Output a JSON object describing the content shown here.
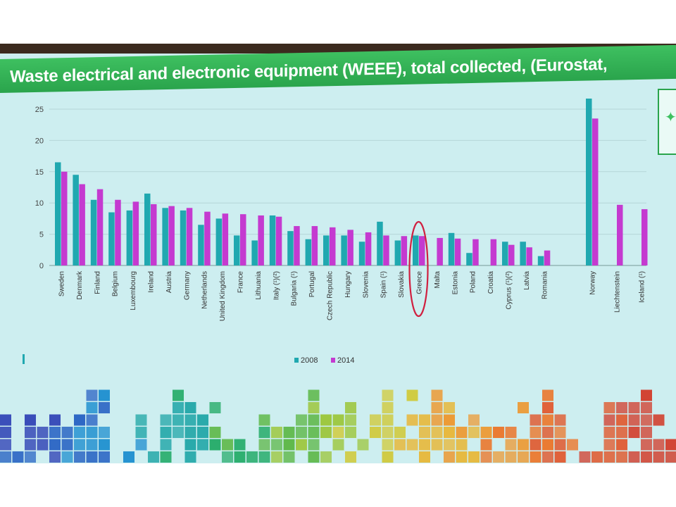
{
  "title": "Waste electrical and electronic equipment (WEEE), total collected, (Eurostat,",
  "colors": {
    "series_2008": "#20a8b0",
    "series_2014": "#c43ad0",
    "title_bar": "#2aa44c",
    "highlight": "#d02040"
  },
  "chart_data": {
    "type": "bar",
    "categories": [
      "Sweden",
      "Denmark",
      "Finland",
      "Belgium",
      "Luxembourg",
      "Ireland",
      "Austria",
      "Germany",
      "Netherlands",
      "United Kingdom",
      "France",
      "Lithuania",
      "Italy (¹)(²)",
      "Bulgaria (¹)",
      "Portugal",
      "Czech Republic",
      "Hungary",
      "Slovenia",
      "Spain (¹)",
      "Slovakia",
      "Greece",
      "Malta",
      "Estonia",
      "Poland",
      "Croatia",
      "Cyprus (¹)(²)",
      "Latvia",
      "Romania",
      "Norway",
      "Liechtenstein",
      "Iceland (¹)"
    ],
    "series": [
      {
        "name": "2008",
        "values": [
          16.5,
          14.5,
          10.5,
          8.5,
          8.8,
          11.5,
          9.2,
          8.8,
          6.5,
          7.5,
          4.8,
          4,
          8,
          5.5,
          4.2,
          4.8,
          4.8,
          3.8,
          7,
          4,
          4.8,
          null,
          5.2,
          2,
          null,
          3.8,
          3.8,
          1.5,
          27,
          null,
          null
        ]
      },
      {
        "name": "2014",
        "values": [
          15,
          13,
          12.2,
          10.5,
          10.2,
          9.8,
          9.5,
          9.2,
          8.6,
          8.3,
          8.2,
          8,
          7.8,
          6.3,
          6.3,
          6.1,
          5.7,
          5.3,
          4.8,
          4.7,
          4.7,
          4.4,
          4.3,
          4.2,
          4.2,
          3.3,
          2.9,
          2.4,
          23.5,
          9.7,
          9
        ]
      }
    ],
    "highlight": "Greece",
    "ylim": [
      0,
      25
    ],
    "yticks": [
      0,
      5,
      10,
      15,
      20,
      25
    ],
    "legend": "bottom-center",
    "grid": true
  }
}
